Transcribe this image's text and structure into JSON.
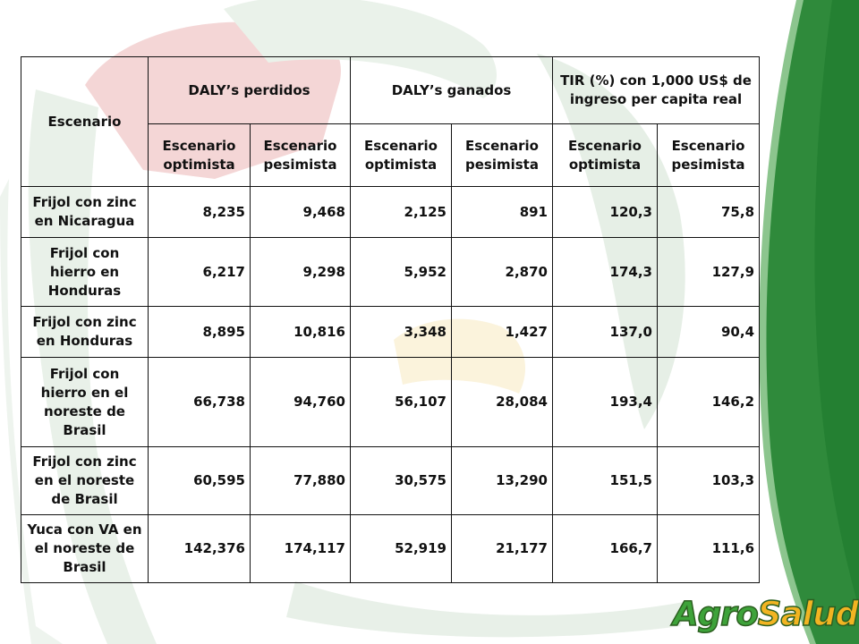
{
  "table": {
    "header": {
      "scenario": "Escenario",
      "groups": [
        "DALY’s perdidos",
        "DALY’s ganados",
        "TIR (%) con 1,000 US$ de ingreso per capita real"
      ],
      "sub": [
        "Escenario optimista",
        "Escenario pesimista",
        "Escenario optimista",
        "Escenario pesimista",
        "Escenario optimista",
        "Escenario pesimista"
      ]
    },
    "rows": [
      {
        "label": "Frijol con zinc en Nicaragua",
        "values": [
          "8,235",
          "9,468",
          "2,125",
          "891",
          "120,3",
          "75,8"
        ]
      },
      {
        "label": "Frijol con hierro en Honduras",
        "values": [
          "6,217",
          "9,298",
          "5,952",
          "2,870",
          "174,3",
          "127,9"
        ]
      },
      {
        "label": "Frijol con zinc en Honduras",
        "values": [
          "8,895",
          "10,816",
          "3,348",
          "1,427",
          "137,0",
          "90,4"
        ]
      },
      {
        "label": "Frijol con hierro en el noreste de Brasil",
        "values": [
          "66,738",
          "94,760",
          "56,107",
          "28,084",
          "193,4",
          "146,2"
        ]
      },
      {
        "label": "Frijol con zinc en el noreste de Brasil",
        "values": [
          "60,595",
          "77,880",
          "30,575",
          "13,290",
          "151,5",
          "103,3"
        ]
      },
      {
        "label": "Yuca con VA en el noreste de Brasil",
        "values": [
          "142,376",
          "174,117",
          "52,919",
          "21,177",
          "166,7",
          "111,6"
        ]
      }
    ]
  },
  "logo": {
    "part1": "Agro",
    "part2": "Salud"
  },
  "colors": {
    "logo_green": "#3ea33a",
    "logo_orange": "#f2b422",
    "band_green": "#2e8b3c"
  }
}
